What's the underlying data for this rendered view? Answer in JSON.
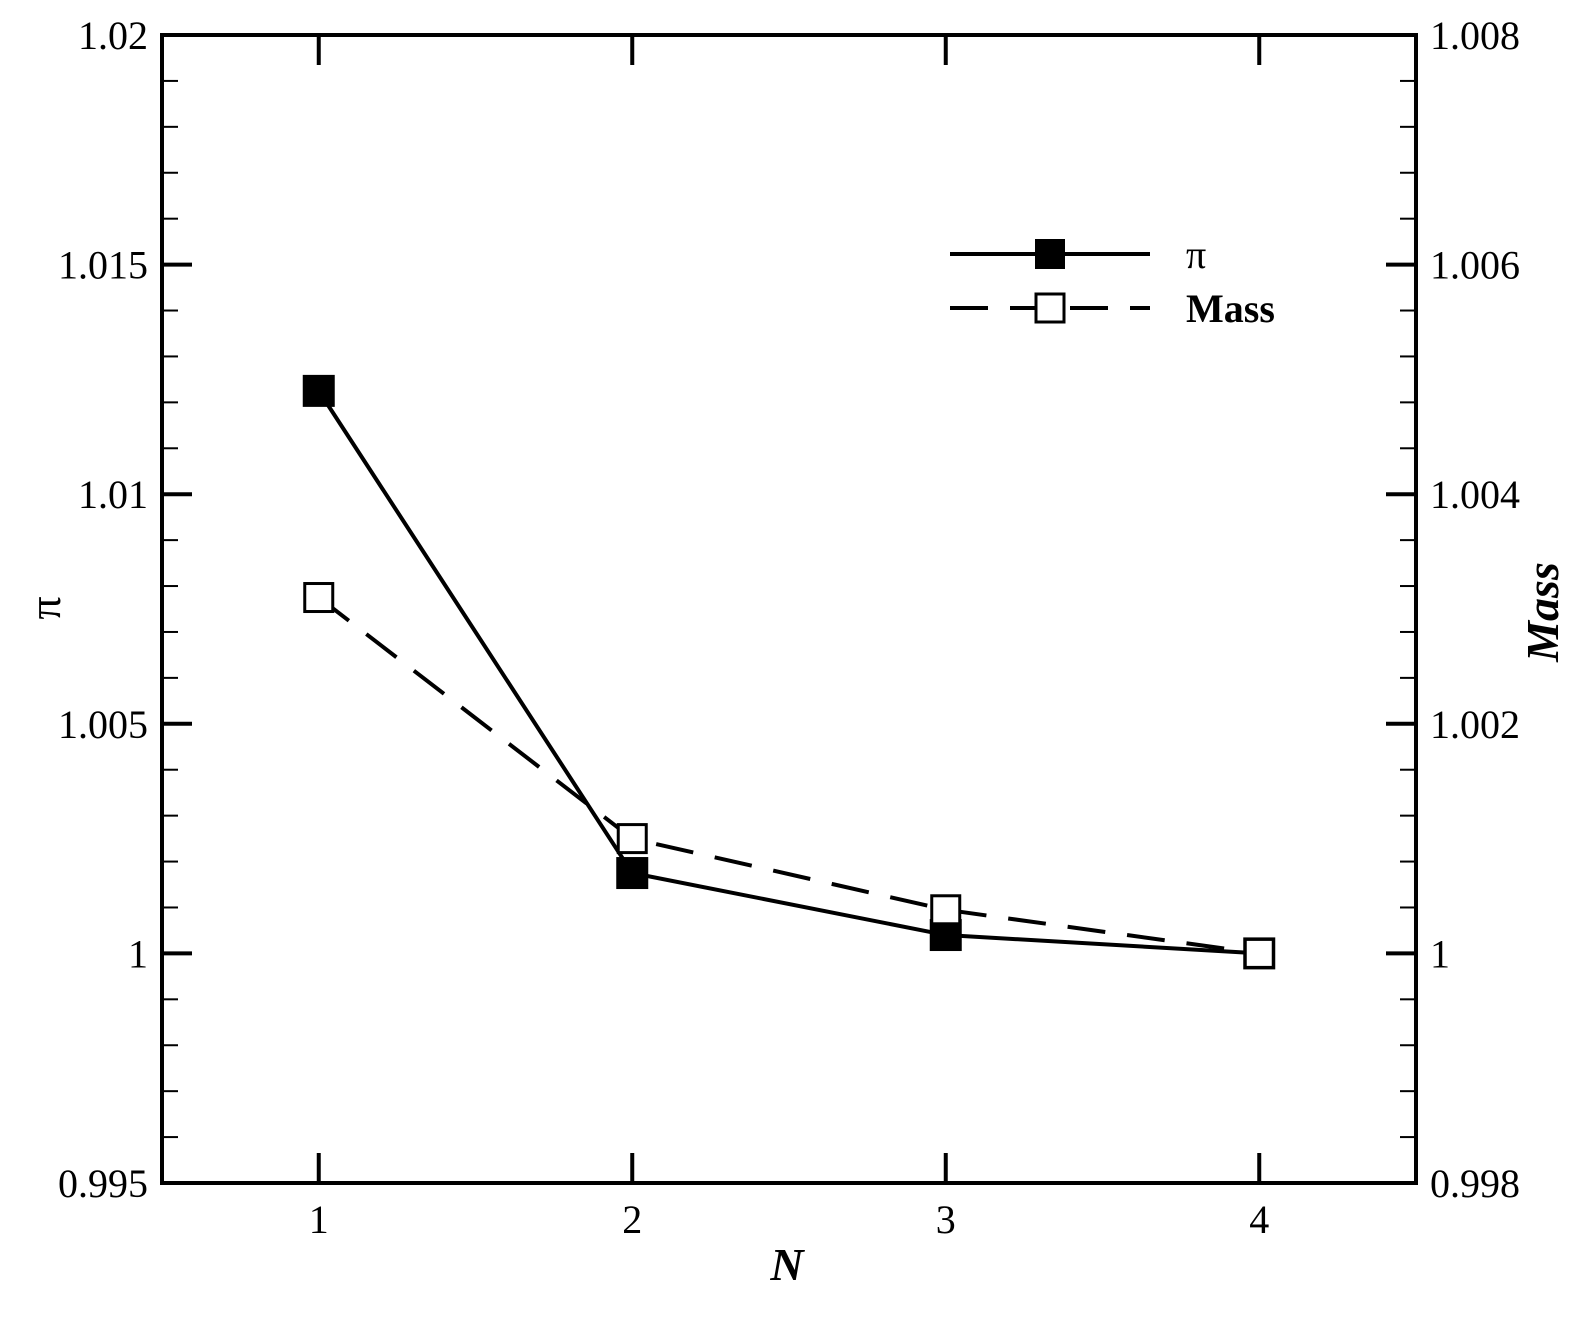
{
  "chart_data": {
    "type": "line",
    "categories": [
      "1",
      "2",
      "3",
      "4"
    ],
    "x": [
      1,
      2,
      3,
      4
    ],
    "xlim": [
      0.5,
      4.5
    ],
    "xlabel": "N",
    "ylabel_left": "π",
    "ylabel_right": "Mass",
    "ylim_left": [
      0.995,
      1.02
    ],
    "ylim_right": [
      0.998,
      1.008
    ],
    "yticks_left": [
      "0.995",
      "1",
      "1.005",
      "1.01",
      "1.015",
      "1.02"
    ],
    "yticks_right": [
      "0.998",
      "1",
      "1.002",
      "1.004",
      "1.006",
      "1.008"
    ],
    "grid": false,
    "legend_position": "top-right",
    "series": [
      {
        "name": "π",
        "axis": "left",
        "line_style": "solid",
        "marker": "filled-square",
        "values": [
          1.01225,
          1.00175,
          1.0004,
          1.0
        ]
      },
      {
        "name": "Mass",
        "axis": "right",
        "line_style": "dashed",
        "marker": "open-square",
        "values": [
          1.0031,
          1.001,
          1.00038,
          1.0
        ]
      }
    ]
  }
}
